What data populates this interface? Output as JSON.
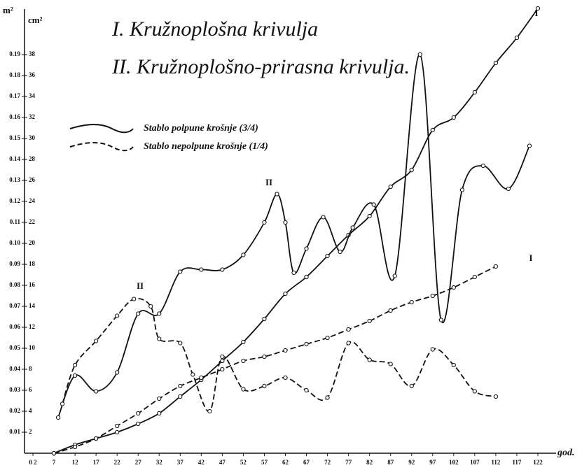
{
  "chart_data": {
    "type": "line",
    "title_lines": [
      "I.  Kružnoplošna krivulja",
      "II.  Kružnoplošno-prirasna krivulja."
    ],
    "xlabel": "god.",
    "ylabel": "cm²",
    "y2label": "m²",
    "xlim": [
      0,
      125
    ],
    "ylim": [
      0,
      43
    ],
    "y2lim": [
      0,
      0.215
    ],
    "xticks": [
      {
        "value": 2,
        "label": "0 2"
      },
      7,
      12,
      17,
      22,
      27,
      32,
      37,
      42,
      47,
      52,
      57,
      62,
      67,
      72,
      77,
      82,
      87,
      92,
      97,
      102,
      107,
      112,
      117,
      122
    ],
    "yticks": [
      2,
      4,
      6,
      8,
      10,
      12,
      14,
      16,
      18,
      20,
      22,
      24,
      26,
      28,
      30,
      32,
      34,
      36,
      38
    ],
    "y2ticks": [
      0.01,
      0.02,
      0.03,
      0.04,
      0.05,
      0.06,
      0.07,
      0.08,
      0.09,
      {
        "value": 0.1,
        "label": "0.10"
      },
      0.11,
      0.12,
      0.13,
      0.14,
      0.15,
      0.16,
      0.17,
      0.18,
      0.19
    ],
    "legend": [
      {
        "text": "Stablo polpune krošnje (3/4)",
        "style": "solid"
      },
      {
        "text": "Stablo nepolpune krošnje (1/4)",
        "style": "dashed"
      }
    ],
    "series": [
      {
        "label": "I",
        "style": "solid",
        "color": "#111111",
        "axis": "y2",
        "x": [
          7,
          12,
          17,
          22,
          27,
          32,
          37,
          42,
          47,
          52,
          57,
          62,
          67,
          72,
          77,
          82,
          87,
          92,
          97,
          102,
          107,
          112,
          117,
          122
        ],
        "values": [
          0,
          0.004,
          0.007,
          0.01,
          0.014,
          0.019,
          0.027,
          0.035,
          0.044,
          0.053,
          0.064,
          0.076,
          0.084,
          0.094,
          0.104,
          0.113,
          0.127,
          0.135,
          0.154,
          0.16,
          0.172,
          0.186,
          0.198,
          0.212
        ]
      },
      {
        "label": "I",
        "style": "dashed",
        "color": "#111111",
        "axis": "y2",
        "x": [
          7,
          12,
          17,
          22,
          27,
          32,
          37,
          42,
          47,
          52,
          57,
          62,
          67,
          72,
          77,
          82,
          87,
          92,
          97,
          102,
          107,
          112
        ],
        "values": [
          0,
          0.003,
          0.007,
          0.013,
          0.019,
          0.026,
          0.032,
          0.036,
          0.04,
          0.044,
          0.046,
          0.049,
          0.052,
          0.055,
          0.059,
          0.063,
          0.068,
          0.072,
          0.075,
          0.079,
          0.084,
          0.089
        ]
      },
      {
        "label": "II",
        "style": "solid",
        "color": "#111111",
        "x": [
          8,
          12,
          17,
          22,
          27,
          32,
          37,
          42,
          47,
          52,
          57,
          60,
          62,
          64,
          67,
          71,
          75,
          78,
          83,
          88,
          94,
          99,
          104,
          109,
          115,
          120
        ],
        "values": [
          3.4,
          7.4,
          5.9,
          7.7,
          13.3,
          13.3,
          17.3,
          17.5,
          17.5,
          18.9,
          22,
          24.7,
          22,
          17.2,
          19.5,
          22.5,
          19.2,
          21.5,
          23.7,
          16.9,
          38,
          12.7,
          25.1,
          27.4,
          25.2,
          29.3
        ]
      },
      {
        "label": "II",
        "style": "dashed",
        "color": "#111111",
        "x": [
          9,
          12,
          17,
          22,
          26,
          30,
          32,
          37,
          40,
          44,
          47,
          52,
          57,
          62,
          67,
          72,
          77,
          82,
          87,
          92,
          97,
          102,
          107,
          112
        ],
        "values": [
          4.7,
          8.4,
          10.7,
          13.1,
          14.7,
          14,
          10.9,
          10.5,
          7.5,
          4,
          9.2,
          6.1,
          6.4,
          7.2,
          6,
          5.3,
          10.5,
          8.9,
          8.5,
          6.4,
          9.9,
          8.4,
          5.9,
          5.4
        ]
      }
    ]
  }
}
